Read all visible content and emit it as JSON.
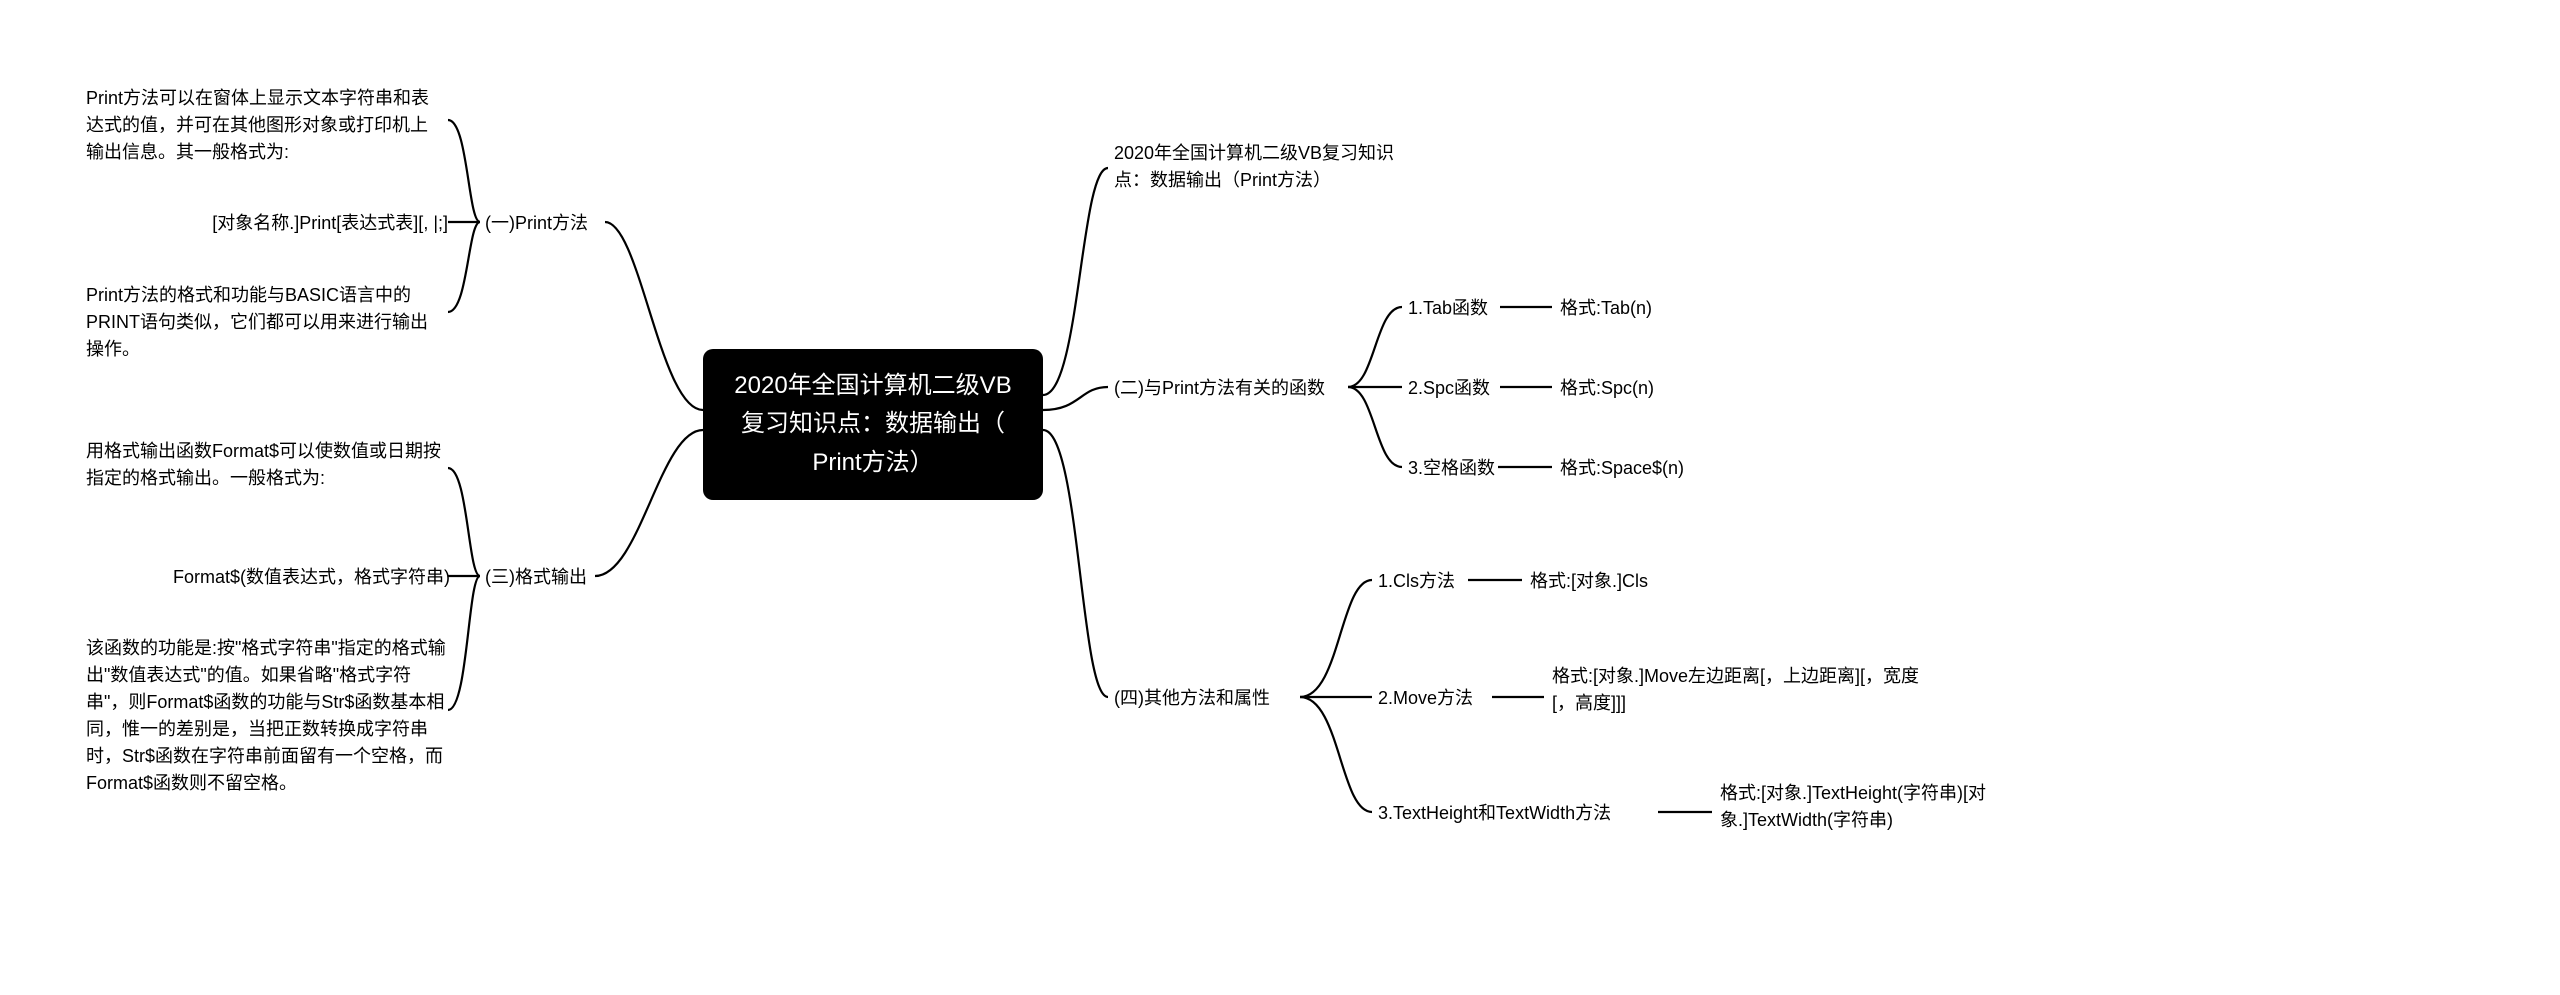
{
  "center": {
    "title": "2020年全国计算机二级VB\n复习知识点：数据输出（\nPrint方法）"
  },
  "left": {
    "section1": {
      "label": "(一)Print方法",
      "items": [
        "Print方法可以在窗体上显示文本字符串和表达式的值，并可在其他图形对象或打印机上输出信息。其一般格式为:",
        "[对象名称.]Print[表达式表][, |;]",
        "Print方法的格式和功能与BASIC语言中的PRINT语句类似，它们都可以用来进行输出操作。"
      ]
    },
    "section3": {
      "label": "(三)格式输出",
      "items": [
        "用格式输出函数Format$可以使数值或日期按指定的格式输出。一般格式为:",
        "Format$(数值表达式，格式字符串)",
        "该函数的功能是:按\"格式字符串\"指定的格式输出\"数值表达式\"的值。如果省略\"格式字符串\"，则Format$函数的功能与Str$函数基本相同，惟一的差别是，当把正数转换成字符串时，Str$函数在字符串前面留有一个空格，而Format$函数则不留空格。"
      ]
    }
  },
  "right": {
    "intro": "2020年全国计算机二级VB复习知识点：数据输出（Print方法）",
    "section2": {
      "label": "(二)与Print方法有关的函数",
      "items": [
        {
          "name": "1.Tab函数",
          "format": "格式:Tab(n)"
        },
        {
          "name": "2.Spc函数",
          "format": "格式:Spc(n)"
        },
        {
          "name": "3.空格函数",
          "format": "格式:Space$(n)"
        }
      ]
    },
    "section4": {
      "label": "(四)其他方法和属性",
      "items": [
        {
          "name": "1.Cls方法",
          "format": "格式:[对象.]Cls"
        },
        {
          "name": "2.Move方法",
          "format": "格式:[对象.]Move左边距离[，上边距离][，宽度[，高度]]]"
        },
        {
          "name": "3.TextHeight和TextWidth方法",
          "format": "格式:[对象.]TextHeight(字符串)[对象.]TextWidth(字符串)"
        }
      ]
    }
  },
  "colors": {
    "bg": "#ffffff",
    "text": "#000000",
    "centerBg": "#000000",
    "centerText": "#ffffff",
    "line": "#000000"
  }
}
